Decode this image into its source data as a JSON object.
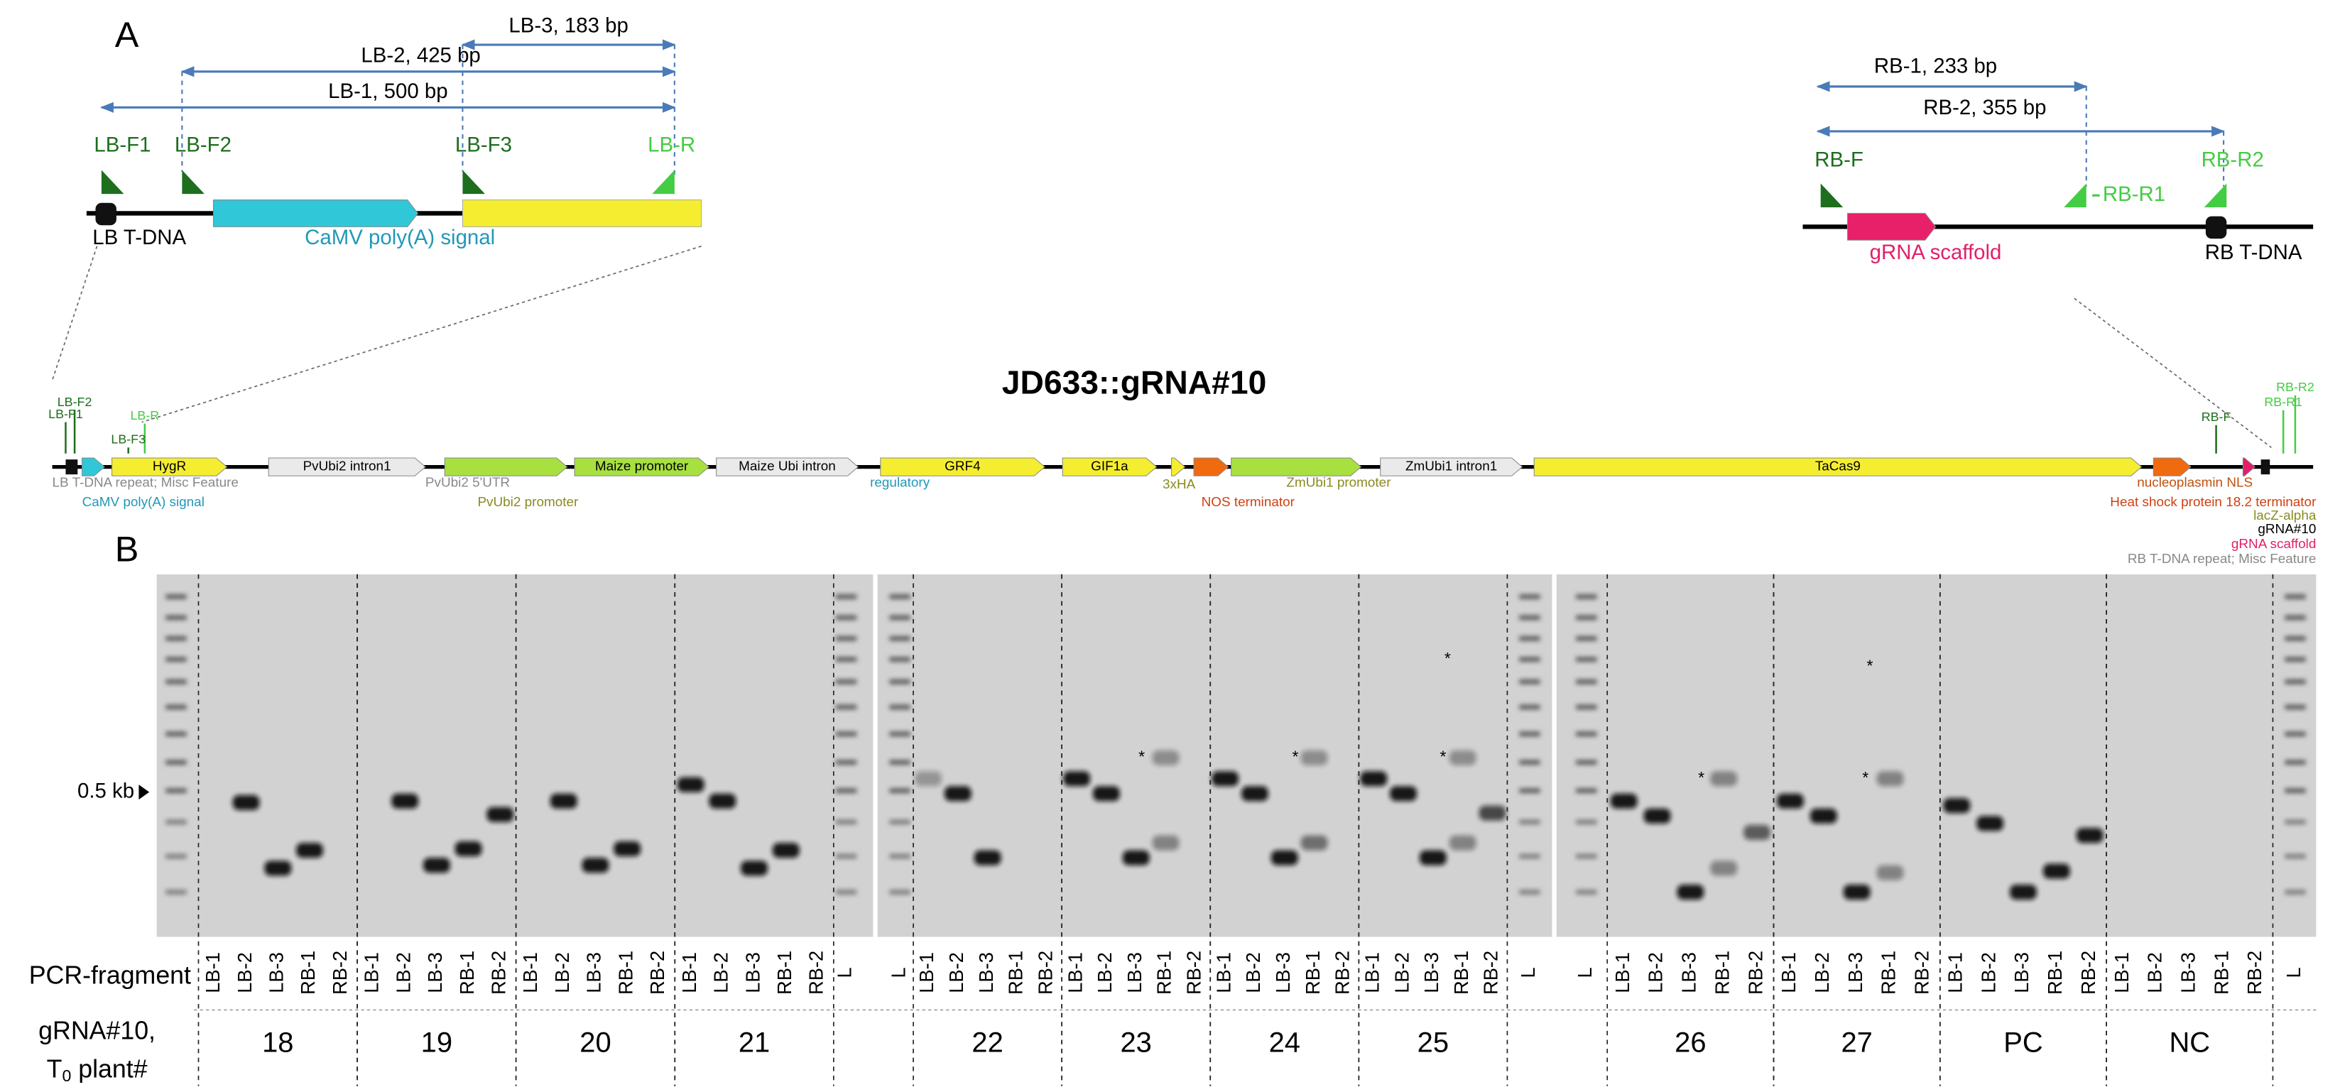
{
  "panel_a": {
    "label": "A",
    "left_inset": {
      "amplicons": [
        "LB-3, 183 bp",
        "LB-2, 425 bp",
        "LB-1, 500 bp"
      ],
      "primers": [
        "LB-F1",
        "LB-F2",
        "LB-F3",
        "LB-R"
      ],
      "features": [
        "LB T-DNA",
        "CaMV poly(A) signal"
      ]
    },
    "right_inset": {
      "amplicons": [
        "RB-1, 233 bp",
        "RB-2, 355 bp"
      ],
      "primers": [
        "RB-F",
        "RB-R1",
        "RB-R2"
      ],
      "features": [
        "gRNA scaffold",
        "RB T-DNA"
      ]
    },
    "map": {
      "title": "JD633::gRNA#10",
      "features": [
        "HygR",
        "PvUbi2 intron1",
        "Maize promoter",
        "Maize Ubi intron",
        "GRF4",
        "GIF1a",
        "ZmUbi1 intron1",
        "TaCas9"
      ],
      "annotations": [
        "LB T-DNA repeat; Misc Feature",
        "CaMV poly(A) signal",
        "PvUbi2 5'UTR",
        "PvUbi2 promoter",
        "regulatory",
        "3xHA",
        "NOS terminator",
        "ZmUbi1 promoter",
        "nucleoplasmin NLS",
        "Heat shock protein 18.2 terminator",
        "lacZ-alpha",
        "gRNA#10",
        "gRNA scaffold",
        "RB T-DNA repeat; Misc Feature"
      ],
      "primers": [
        "LB-F1",
        "LB-F2",
        "LB-R",
        "LB-F3",
        "RB-F",
        "RB-R1",
        "RB-R2"
      ]
    }
  },
  "panel_b": {
    "label": "B",
    "marker": "0.5 kb",
    "asterisk": "*",
    "row_labels": {
      "fragment": "PCR-fragment",
      "plant_line1": "gRNA#10,",
      "plant_t": "T",
      "plant_sub": "0",
      "plant_rest": " plant#"
    },
    "gels": [
      {
        "lanes": [
          "LB-1",
          "LB-2",
          "LB-3",
          "RB-1",
          "RB-2",
          "LB-1",
          "LB-2",
          "LB-3",
          "RB-1",
          "RB-2",
          "LB-1",
          "LB-2",
          "LB-3",
          "RB-1",
          "RB-2",
          "LB-1",
          "LB-2",
          "LB-3",
          "RB-1",
          "RB-2",
          "L"
        ],
        "plants": [
          "18",
          "19",
          "20",
          "21"
        ]
      },
      {
        "lanes": [
          "L",
          "LB-1",
          "LB-2",
          "LB-3",
          "RB-1",
          "RB-2",
          "LB-1",
          "LB-2",
          "LB-3",
          "RB-1",
          "RB-2",
          "LB-1",
          "LB-2",
          "LB-3",
          "RB-1",
          "RB-2",
          "LB-1",
          "LB-2",
          "LB-3",
          "RB-1",
          "RB-2",
          "L"
        ],
        "plants": [
          "22",
          "23",
          "24",
          "25"
        ]
      },
      {
        "lanes": [
          "L",
          "LB-1",
          "LB-2",
          "LB-3",
          "RB-1",
          "RB-2",
          "LB-1",
          "LB-2",
          "LB-3",
          "RB-1",
          "RB-2",
          "LB-1",
          "LB-2",
          "LB-3",
          "RB-1",
          "RB-2",
          "LB-1",
          "LB-2",
          "LB-3",
          "RB-1",
          "RB-2",
          "L"
        ],
        "plants": [
          "26",
          "27",
          "PC",
          "NC"
        ]
      }
    ]
  }
}
